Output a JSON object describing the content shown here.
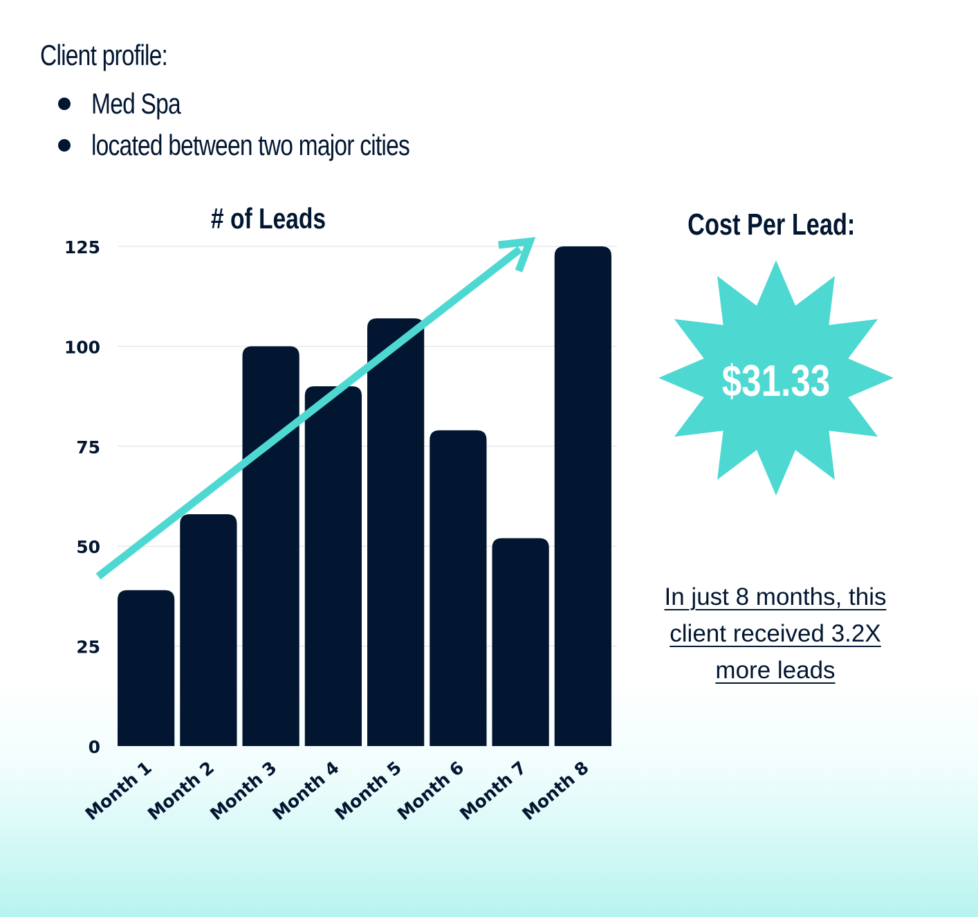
{
  "profile": {
    "heading": "Client profile:",
    "bullets": [
      "Med Spa",
      "located between two major cities"
    ]
  },
  "cost_per_lead": {
    "title": "Cost Per Lead:",
    "value": "$31.33"
  },
  "caption": "In just 8 months, this client received 3.2X more leads",
  "colors": {
    "bar": "#021631",
    "accent": "#4ed8d2",
    "text": "#021631",
    "grid": "#dddddd"
  },
  "chart_data": {
    "type": "bar",
    "title": "# of Leads",
    "categories": [
      "Month 1",
      "Month 2",
      "Month 3",
      "Month 4",
      "Month 5",
      "Month 6",
      "Month 7",
      "Month 8"
    ],
    "values": [
      39,
      58,
      100,
      90,
      107,
      79,
      52,
      125
    ],
    "ylim": [
      0,
      125
    ],
    "yticks": [
      0,
      25,
      50,
      75,
      100,
      125
    ],
    "grid": true,
    "trend_arrow": true
  }
}
